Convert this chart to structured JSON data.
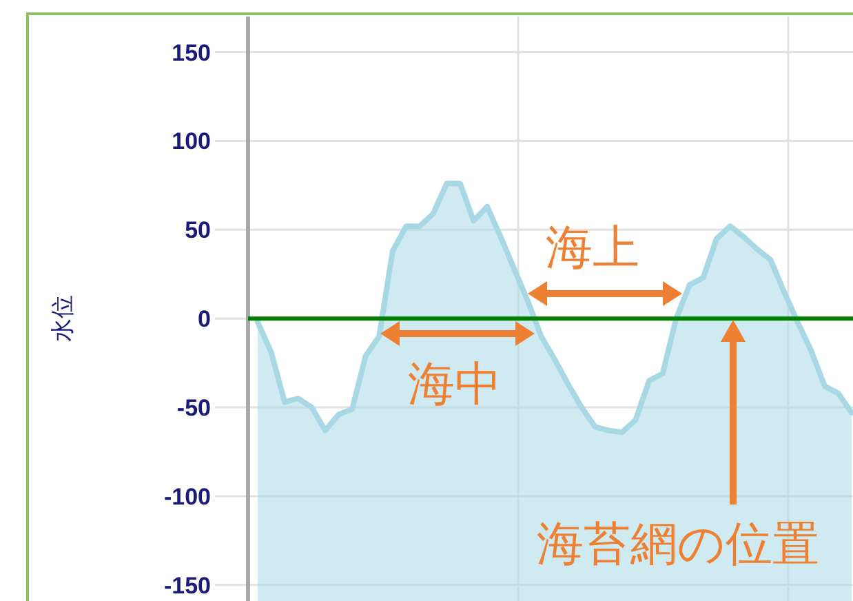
{
  "chart_data": {
    "type": "area",
    "ylabel": "水位",
    "categories": [
      null,
      null,
      null,
      null,
      null,
      null,
      null,
      null,
      null,
      null,
      null,
      null,
      null,
      null,
      null,
      null,
      null,
      null,
      null,
      null,
      null,
      null,
      null,
      null,
      null,
      null,
      null,
      null,
      null,
      null,
      null,
      null,
      null,
      null,
      null,
      null,
      null,
      null,
      null,
      null,
      null,
      null,
      null,
      null,
      null
    ],
    "series": [
      {
        "color": "#a8d8e4",
        "values": [
          -2,
          -19,
          -47,
          -45,
          -50,
          -63,
          -54,
          -51,
          -21,
          -10,
          38,
          52,
          52,
          59,
          76,
          76,
          55,
          63,
          46,
          28,
          10,
          -10,
          -23,
          -37,
          -50,
          -61,
          -63,
          -64,
          -57,
          -35,
          -31,
          0,
          19,
          23,
          45,
          52,
          46,
          39,
          33,
          15,
          -2,
          -18,
          -38,
          -42,
          -53
        ]
      }
    ],
    "ylim": [
      -159,
      170
    ],
    "yticks": [
      -150,
      -100,
      -50,
      0,
      50,
      100,
      150
    ],
    "grid": true,
    "ref_lines": [
      {
        "axis": "y",
        "value": 0,
        "color": "#008000"
      }
    ],
    "annotations": [
      "海中",
      "海上",
      "海苔網の位置"
    ]
  }
}
